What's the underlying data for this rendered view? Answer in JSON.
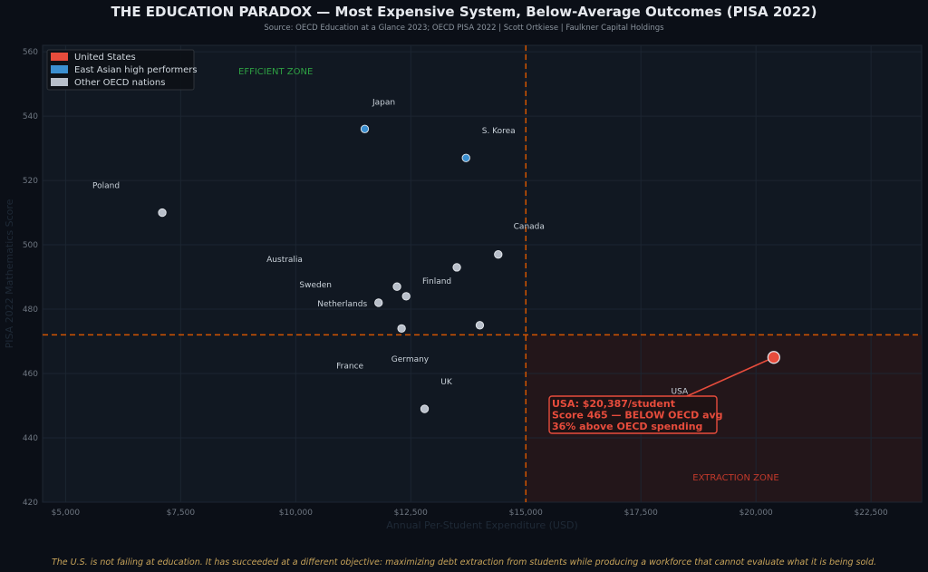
{
  "header": {
    "title": "THE EDUCATION PARADOX — Most Expensive System, Below-Average Outcomes (PISA 2022)",
    "subtitle": "Source: OECD Education at a Glance 2023; OECD PISA 2022  |  Scott Ortkiese  |  Faulkner Capital Holdings"
  },
  "footer": {
    "text": "The U.S. is not failing at education. It has succeeded at a different objective: maximizing debt extraction from students while producing a workforce that cannot evaluate what it is being sold."
  },
  "colors": {
    "us": "#e74c3c",
    "east_asian": "#3b8fd0",
    "other": "#b8bfca",
    "reference_line": "#d35400",
    "extraction_zone": "#2a1518"
  },
  "chart_data": {
    "type": "scatter",
    "xlabel": "Annual Per-Student Expenditure (USD)",
    "ylabel": "PISA 2022 Mathematics Score",
    "xlim": [
      4500,
      23600
    ],
    "ylim": [
      420,
      562
    ],
    "x_ticks": [
      5000,
      7500,
      10000,
      12500,
      15000,
      17500,
      20000,
      22500
    ],
    "x_tick_labels": [
      "$5,000",
      "$7,500",
      "$10,000",
      "$12,500",
      "$15,000",
      "$17,500",
      "$20,000",
      "$22,500"
    ],
    "y_ticks": [
      420,
      440,
      460,
      480,
      500,
      520,
      540,
      560
    ],
    "y_tick_labels": [
      "420",
      "440",
      "460",
      "480",
      "500",
      "520",
      "540",
      "560"
    ],
    "grid": true,
    "legend_position": "top-left",
    "legend": [
      {
        "label": "United States",
        "group": "us"
      },
      {
        "label": "East Asian high performers",
        "group": "east_asian"
      },
      {
        "label": "Other OECD nations",
        "group": "other"
      }
    ],
    "reference_lines": {
      "oecd_avg_spending_x": 15000,
      "oecd_avg_score_y": 472
    },
    "zones": {
      "efficient": "EFFICIENT ZONE",
      "extraction": "EXTRACTION ZONE"
    },
    "points": [
      {
        "label": "Japan",
        "x": 11500,
        "y": 536,
        "group": "east_asian"
      },
      {
        "label": "S. Korea",
        "x": 13700,
        "y": 527,
        "group": "east_asian"
      },
      {
        "label": "Poland",
        "x": 7100,
        "y": 510,
        "group": "other"
      },
      {
        "label": "Canada",
        "x": 14400,
        "y": 497,
        "group": "other"
      },
      {
        "label": "Finland",
        "x": 13500,
        "y": 493,
        "group": "other"
      },
      {
        "label": "Australia",
        "x": 12200,
        "y": 487,
        "group": "other"
      },
      {
        "label": "Sweden",
        "x": 12400,
        "y": 484,
        "group": "other"
      },
      {
        "label": "Netherlands",
        "x": 11800,
        "y": 482,
        "group": "other"
      },
      {
        "label": "France",
        "x": 12300,
        "y": 474,
        "group": "other"
      },
      {
        "label": "Germany",
        "x": 14000,
        "y": 475,
        "group": "other"
      },
      {
        "label": "UK",
        "x": 12800,
        "y": 449,
        "group": "other"
      },
      {
        "label": "USA",
        "x": 20387,
        "y": 465,
        "group": "us"
      }
    ],
    "annotation": {
      "lines": [
        "USA: $20,387/student",
        "Score 465 — BELOW OECD avg",
        "36% above OECD spending"
      ]
    }
  }
}
